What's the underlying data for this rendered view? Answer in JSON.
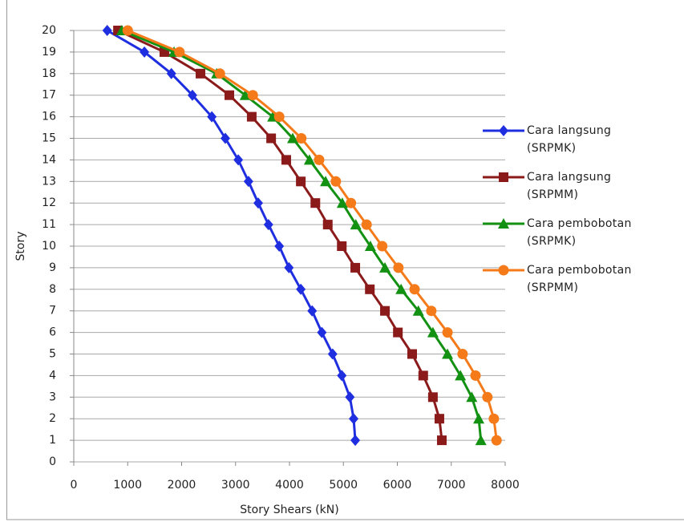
{
  "chart_data": {
    "type": "line",
    "xlabel": "Story Shears (kN)",
    "ylabel": "Story",
    "y": [
      1,
      2,
      3,
      4,
      5,
      6,
      7,
      8,
      9,
      10,
      11,
      12,
      13,
      14,
      15,
      16,
      17,
      18,
      19,
      20
    ],
    "series": [
      {
        "name": "Cara langsung (SRPMK)",
        "color": "#1f2fe0",
        "marker": "diamond",
        "values": [
          5220,
          5190,
          5120,
          4970,
          4800,
          4600,
          4420,
          4210,
          3990,
          3810,
          3610,
          3420,
          3240,
          3050,
          2810,
          2560,
          2200,
          1810,
          1310,
          620
        ]
      },
      {
        "name": "Cara langsung (SRPMM)",
        "color": "#8b1a1a",
        "marker": "square",
        "values": [
          6825,
          6780,
          6660,
          6480,
          6275,
          6010,
          5770,
          5490,
          5220,
          4970,
          4710,
          4480,
          4210,
          3940,
          3660,
          3300,
          2885,
          2350,
          1680,
          820
        ]
      },
      {
        "name": "Cara pembobotan (SRPMK)",
        "color": "#139113",
        "marker": "triangle",
        "values": [
          7550,
          7510,
          7380,
          7170,
          6930,
          6660,
          6390,
          6070,
          5770,
          5500,
          5230,
          4980,
          4670,
          4370,
          4060,
          3690,
          3180,
          2650,
          1860,
          890
        ]
      },
      {
        "name": "Cara pembobotan (SRPMM)",
        "color": "#f57a1a",
        "marker": "circle",
        "values": [
          7840,
          7790,
          7670,
          7450,
          7210,
          6930,
          6630,
          6320,
          6020,
          5720,
          5430,
          5140,
          4860,
          4550,
          4220,
          3810,
          3320,
          2710,
          1960,
          1000
        ]
      }
    ],
    "xlim": [
      0,
      8000
    ],
    "xticks": [
      0,
      1000,
      2000,
      3000,
      4000,
      5000,
      6000,
      7000,
      8000
    ],
    "ylim": [
      0,
      20
    ],
    "yticks": [
      0,
      1,
      2,
      3,
      4,
      5,
      6,
      7,
      8,
      9,
      10,
      11,
      12,
      13,
      14,
      15,
      16,
      17,
      18,
      19,
      20
    ],
    "grid": true
  }
}
